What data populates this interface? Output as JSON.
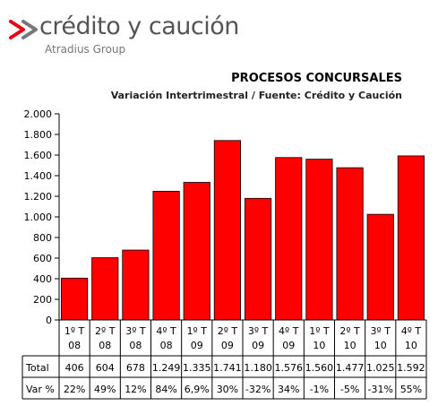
{
  "logo": {
    "brand": "crédito y caución",
    "group": "Atradius Group",
    "mark_color": "#e30613"
  },
  "chart_data": {
    "type": "bar",
    "title": "PROCESOS CONCURSALES",
    "subtitle": "Variación Intertrimestral / Fuente: Crédito y Caución",
    "categories": [
      [
        "1º T",
        "08"
      ],
      [
        "2º T",
        "08"
      ],
      [
        "3º T",
        "08"
      ],
      [
        "4º T",
        "08"
      ],
      [
        "1º T",
        "09"
      ],
      [
        "2º T",
        "09"
      ],
      [
        "3º T",
        "09"
      ],
      [
        "4º T",
        "09"
      ],
      [
        "1º T",
        "10"
      ],
      [
        "2º T",
        "10"
      ],
      [
        "3º T",
        "10"
      ],
      [
        "4º T",
        "10"
      ]
    ],
    "values": [
      406,
      604,
      678,
      1249,
      1335,
      1741,
      1180,
      1576,
      1560,
      1477,
      1025,
      1592
    ],
    "ylim": [
      0,
      2000
    ],
    "yticks": [
      0,
      200,
      400,
      600,
      800,
      1000,
      1200,
      1400,
      1600,
      1800,
      2000
    ],
    "ytick_labels": [
      "0",
      "200",
      "400",
      "600",
      "800",
      "1.000",
      "1.200",
      "1.400",
      "1.600",
      "1.800",
      "2.000"
    ],
    "bar_color": "#ff0000",
    "grid": false,
    "table": {
      "rows": [
        {
          "label": "Total",
          "cells": [
            "406",
            "604",
            "678",
            "1.249",
            "1.335",
            "1.741",
            "1.180",
            "1.576",
            "1.560",
            "1.477",
            "1.025",
            "1.592"
          ]
        },
        {
          "label": "Var %",
          "cells": [
            "22%",
            "49%",
            "12%",
            "84%",
            "6,9%",
            "30%",
            "-32%",
            "34%",
            "-1%",
            "-5%",
            "-31%",
            "55%"
          ]
        }
      ]
    }
  }
}
